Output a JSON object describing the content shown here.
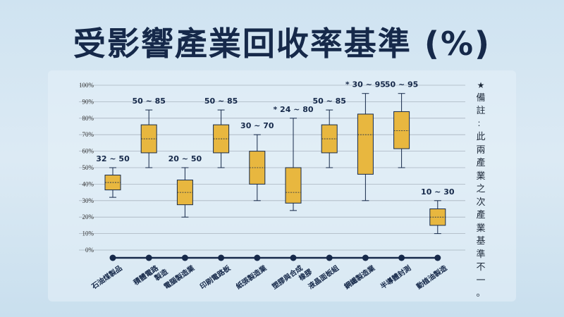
{
  "title": "受影響產業回收率基準 (%)",
  "note": "★備註：此兩產業之次產業基準不一。",
  "chart_data": {
    "type": "box",
    "ylim": [
      0,
      100
    ],
    "yticks": [
      "0%",
      "10%",
      "20%",
      "30%",
      "40%",
      "50%",
      "60%",
      "70%",
      "80%",
      "90%",
      "100%"
    ],
    "grid": true,
    "colors": {
      "box": "#e8b73f",
      "line": "#16294a"
    },
    "categories": [
      "石油煤製品",
      "積體電路製造",
      "電腦製造業",
      "印刷電路板",
      "紙張製造業",
      "塑膠與合成橡膠",
      "液晶面板組",
      "鋼鐵製造業",
      "半導體封測",
      "動植油製造"
    ],
    "category_lines": [
      [
        "石油煤製品"
      ],
      [
        "積體電路",
        "製造"
      ],
      [
        "電腦製造業"
      ],
      [
        "印刷電路板"
      ],
      [
        "紙張製造業"
      ],
      [
        "塑膠與合成",
        "橡膠"
      ],
      [
        "液晶面板組"
      ],
      [
        "鋼鐵製造業"
      ],
      [
        "半導體封測"
      ],
      [
        "動植油製造"
      ]
    ],
    "labels": [
      "32 ~ 50",
      "50 ~ 85",
      "20 ~ 50",
      "50 ~ 85",
      "30 ~ 70",
      "* 24 ~ 80",
      "50 ~ 85",
      "* 30 ~ 95",
      "50 ~ 95",
      "10 ~ 30"
    ],
    "min": [
      32,
      50,
      20,
      50,
      30,
      24,
      50,
      30,
      50,
      10
    ],
    "q1": [
      36.5,
      59,
      27.5,
      59,
      40,
      28.5,
      59,
      46,
      61.5,
      15
    ],
    "median": [
      41,
      67.5,
      35,
      67.5,
      50,
      35,
      67.5,
      70,
      72.5,
      20
    ],
    "q3": [
      45.5,
      76,
      42.5,
      76,
      60,
      50,
      76,
      82.5,
      84,
      25
    ],
    "max": [
      50,
      85,
      50,
      85,
      70,
      80,
      85,
      95,
      95,
      30
    ]
  }
}
